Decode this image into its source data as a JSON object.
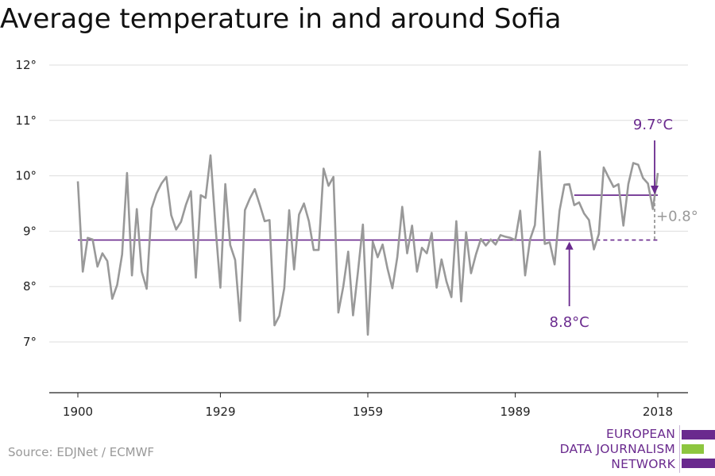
{
  "title": "Average temperature in and around Sofia",
  "source": "Source: EDJNet / ECMWF",
  "logo": {
    "lines": [
      "EUROPEAN",
      "DATA JOURNALISM",
      "NETWORK"
    ],
    "colors": [
      "#6a2a8e",
      "#8dc63f",
      "#6a2a8e"
    ]
  },
  "colors": {
    "series": "#999999",
    "baseline": "#6a2a8e",
    "delta": "#999999"
  },
  "chart_data": {
    "type": "line",
    "title": "Average temperature in and around Sofia",
    "xlabel": "",
    "ylabel": "",
    "ylim": [
      6,
      12.3
    ],
    "xlim": [
      1896,
      2024
    ],
    "y_ticks": [
      7,
      8,
      9,
      10,
      11,
      12
    ],
    "y_tick_labels": [
      "7°",
      "8°",
      "9°",
      "10°",
      "11°",
      "12°"
    ],
    "x_ticks": [
      1900,
      1929,
      1959,
      1989,
      2018
    ],
    "x_tick_labels": [
      "1900",
      "1929",
      "1959",
      "1989",
      "2018"
    ],
    "grid": true,
    "series": [
      {
        "x": [
          1900,
          1901,
          1902,
          1903,
          1904,
          1905,
          1906,
          1907,
          1908,
          1909,
          1910,
          1911,
          1912,
          1913,
          1914,
          1915,
          1916,
          1917,
          1918,
          1919,
          1920,
          1921,
          1922,
          1923,
          1924,
          1925,
          1926,
          1927,
          1928,
          1929,
          1930,
          1931,
          1932,
          1933,
          1934,
          1935,
          1936,
          1937,
          1938,
          1939,
          1940,
          1941,
          1942,
          1943,
          1944,
          1945,
          1946,
          1947,
          1948,
          1949,
          1950,
          1951,
          1952,
          1953,
          1954,
          1955,
          1956,
          1957,
          1958,
          1959,
          1960,
          1961,
          1962,
          1963,
          1964,
          1965,
          1966,
          1967,
          1968,
          1969,
          1970,
          1971,
          1972,
          1973,
          1974,
          1975,
          1976,
          1977,
          1978,
          1979,
          1980,
          1981,
          1982,
          1983,
          1984,
          1985,
          1986,
          1987,
          1988,
          1989,
          1990,
          1991,
          1992,
          1993,
          1994,
          1995,
          1996,
          1997,
          1998,
          1999,
          2000,
          2001,
          2002,
          2003,
          2004,
          2005,
          2006,
          2007,
          2008,
          2009,
          2010,
          2011,
          2012,
          2013,
          2014,
          2015,
          2016,
          2017,
          2018
        ],
        "values": [
          9.9,
          8.27,
          8.88,
          8.85,
          8.36,
          8.6,
          8.46,
          7.78,
          8.03,
          8.58,
          10.05,
          8.2,
          9.4,
          8.27,
          7.96,
          9.41,
          9.68,
          9.86,
          9.98,
          9.29,
          9.03,
          9.17,
          9.48,
          9.72,
          8.16,
          9.65,
          9.6,
          10.37,
          9.1,
          7.98,
          9.85,
          8.75,
          8.48,
          7.38,
          9.38,
          9.59,
          9.76,
          9.48,
          9.18,
          9.2,
          7.3,
          7.47,
          7.97,
          9.38,
          8.31,
          9.3,
          9.5,
          9.18,
          8.66,
          8.66,
          10.13,
          9.82,
          9.98,
          7.53,
          8.0,
          8.63,
          7.48,
          8.27,
          9.12,
          7.13,
          8.81,
          8.53,
          8.76,
          8.33,
          7.97,
          8.53,
          9.44,
          8.6,
          9.1,
          8.27,
          8.7,
          8.6,
          8.97,
          7.98,
          8.49,
          8.09,
          7.81,
          9.18,
          7.73,
          8.98,
          8.24,
          8.58,
          8.86,
          8.74,
          8.85,
          8.76,
          8.93,
          8.9,
          8.88,
          8.84,
          9.37,
          8.2,
          8.85,
          9.11,
          10.44,
          8.77,
          8.8,
          8.4,
          9.37,
          9.84,
          9.85,
          9.47,
          9.52,
          9.32,
          9.2,
          8.67,
          8.95,
          10.15,
          9.97,
          9.8,
          9.85,
          9.1,
          9.85,
          10.23,
          10.2,
          9.96,
          9.86,
          9.4,
          10.05
        ]
      }
    ],
    "annotations": [
      {
        "label": "9.7°C",
        "value": 9.65,
        "x_start": 2001,
        "x_end": 2018
      },
      {
        "label": "8.8°C",
        "value": 8.84,
        "x_start": 1900,
        "x_end": 2018
      },
      {
        "label": "+0.8°",
        "value": 0.81
      }
    ]
  }
}
